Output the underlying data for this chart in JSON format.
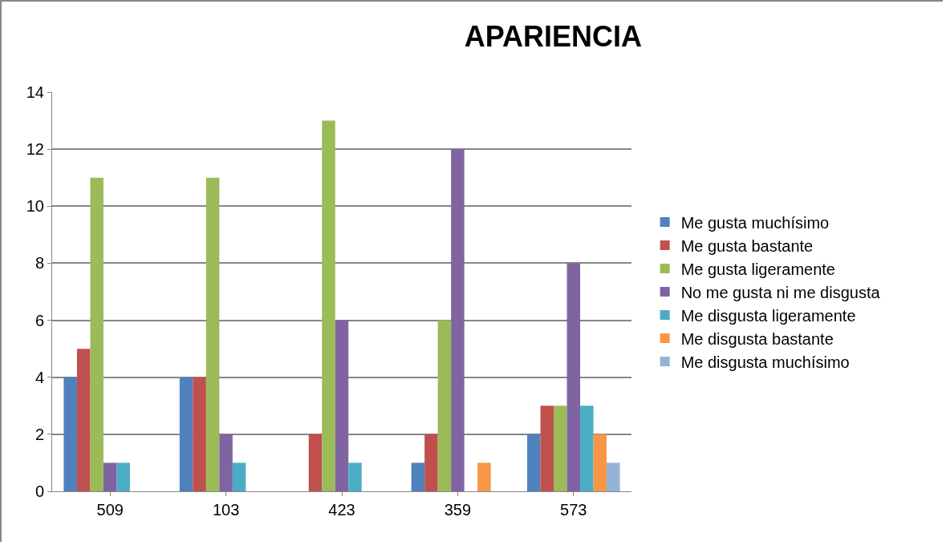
{
  "chart_data": {
    "type": "bar",
    "title": "APARIENCIA",
    "categories": [
      "509",
      "103",
      "423",
      "359",
      "573"
    ],
    "series": [
      {
        "name": "Me gusta muchísimo",
        "color": "#4f81bd",
        "values": [
          4,
          4,
          0,
          1,
          2
        ]
      },
      {
        "name": "Me gusta bastante",
        "color": "#c0504d",
        "values": [
          5,
          4,
          2,
          2,
          3
        ]
      },
      {
        "name": "Me gusta ligeramente",
        "color": "#9bbb59",
        "values": [
          11,
          11,
          13,
          6,
          3
        ]
      },
      {
        "name": "No me gusta ni me disgusta",
        "color": "#8064a2",
        "values": [
          1,
          2,
          6,
          12,
          8
        ]
      },
      {
        "name": "Me disgusta ligeramente",
        "color": "#4bacc6",
        "values": [
          1,
          1,
          1,
          0,
          3
        ]
      },
      {
        "name": "Me disgusta bastante",
        "color": "#f79646",
        "values": [
          0,
          0,
          0,
          1,
          2
        ]
      },
      {
        "name": "Me disgusta muchísimo",
        "color": "#95b3d7",
        "values": [
          0,
          0,
          0,
          0,
          1
        ]
      }
    ],
    "ylim": [
      0,
      14
    ],
    "yticks": [
      0,
      2,
      4,
      6,
      8,
      10,
      12,
      14
    ],
    "grid": "y",
    "legend": "right"
  }
}
